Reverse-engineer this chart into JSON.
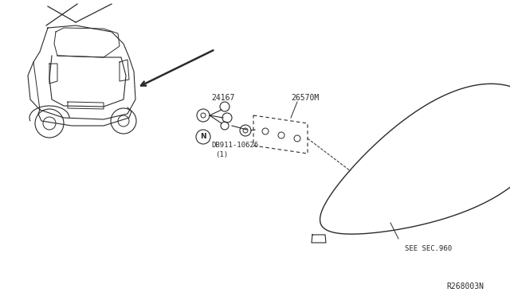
{
  "bg_color": "#ffffff",
  "line_color": "#2a2a2a",
  "text_color": "#2a2a2a",
  "parts": {
    "part1_label": "24167",
    "part2_label": "26570M",
    "part3_label": "DB911-10626",
    "part3_sub": "(1)",
    "see_sec": "SEE SEC.960",
    "footnote": "R268003N"
  }
}
